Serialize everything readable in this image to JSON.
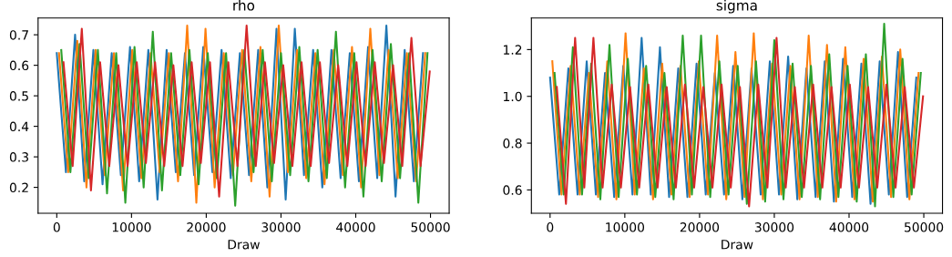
{
  "chart_data": [
    {
      "type": "line",
      "title": "rho",
      "xlabel": "Draw",
      "xlim": [
        -2500,
        52500
      ],
      "xticks": [
        0,
        10000,
        20000,
        30000,
        40000,
        50000
      ],
      "ylim": [
        0.115,
        0.755
      ],
      "yticks": [
        0.2,
        0.3,
        0.4,
        0.5,
        0.6,
        0.7
      ],
      "grid": false,
      "legend": false,
      "marker": "none",
      "line_style": "solid",
      "series": [
        {
          "color": "#1f77b4",
          "x": [
            0,
            1225,
            2450,
            3675,
            4900,
            6125,
            7350,
            8575,
            9800,
            11025,
            12250,
            13475,
            14700,
            15925,
            17150,
            18375,
            19600,
            20825,
            22050,
            23275,
            24500,
            25725,
            26950,
            28175,
            29400,
            30625,
            31850,
            33075,
            34300,
            35525,
            36750,
            37975,
            39200,
            40425,
            41650,
            42875,
            44100,
            45325,
            46550,
            47775,
            49000
          ],
          "values": [
            0.64,
            0.25,
            0.7,
            0.22,
            0.65,
            0.21,
            0.64,
            0.24,
            0.66,
            0.22,
            0.65,
            0.16,
            0.65,
            0.25,
            0.64,
            0.24,
            0.66,
            0.25,
            0.65,
            0.23,
            0.64,
            0.24,
            0.65,
            0.2,
            0.72,
            0.16,
            0.72,
            0.24,
            0.65,
            0.2,
            0.65,
            0.23,
            0.64,
            0.22,
            0.66,
            0.23,
            0.73,
            0.17,
            0.65,
            0.22,
            0.64
          ]
        },
        {
          "color": "#ff7f0e",
          "x": [
            300,
            1525,
            2750,
            3975,
            5200,
            6425,
            7650,
            8875,
            10100,
            11325,
            12550,
            13775,
            15000,
            16225,
            17450,
            18675,
            19900,
            21125,
            22350,
            23575,
            24800,
            26025,
            27250,
            28475,
            29700,
            30925,
            32150,
            33375,
            34600,
            35825,
            37050,
            38275,
            39500,
            40725,
            41950,
            43175,
            44400,
            45625,
            46850,
            48075,
            49300
          ],
          "values": [
            0.64,
            0.25,
            0.68,
            0.2,
            0.65,
            0.24,
            0.64,
            0.19,
            0.65,
            0.23,
            0.64,
            0.25,
            0.64,
            0.22,
            0.73,
            0.15,
            0.72,
            0.2,
            0.64,
            0.24,
            0.65,
            0.22,
            0.66,
            0.17,
            0.73,
            0.25,
            0.65,
            0.23,
            0.64,
            0.21,
            0.65,
            0.24,
            0.66,
            0.2,
            0.72,
            0.24,
            0.65,
            0.23,
            0.64,
            0.22,
            0.64
          ]
        },
        {
          "color": "#2ca02c",
          "x": [
            600,
            1825,
            3050,
            4275,
            5500,
            6725,
            7950,
            9175,
            10400,
            11625,
            12850,
            14075,
            15300,
            16525,
            17750,
            18975,
            20200,
            21425,
            22650,
            23875,
            25100,
            26325,
            27550,
            28775,
            30000,
            31225,
            32450,
            33675,
            34900,
            36125,
            37350,
            38575,
            39800,
            41025,
            42250,
            43475,
            44700,
            45925,
            47150,
            48375,
            49600
          ],
          "values": [
            0.65,
            0.25,
            0.67,
            0.23,
            0.65,
            0.18,
            0.64,
            0.15,
            0.66,
            0.2,
            0.71,
            0.19,
            0.64,
            0.24,
            0.65,
            0.21,
            0.64,
            0.23,
            0.64,
            0.14,
            0.65,
            0.25,
            0.65,
            0.22,
            0.64,
            0.24,
            0.66,
            0.22,
            0.65,
            0.23,
            0.71,
            0.2,
            0.64,
            0.17,
            0.65,
            0.22,
            0.67,
            0.23,
            0.64,
            0.15,
            0.64
          ]
        },
        {
          "color": "#d62728",
          "x": [
            900,
            2125,
            3350,
            4575,
            5800,
            7025,
            8250,
            9475,
            10700,
            11925,
            13150,
            14375,
            15600,
            16825,
            18050,
            19275,
            20500,
            21725,
            22950,
            24175,
            25400,
            26625,
            27850,
            29075,
            30300,
            31525,
            32750,
            33975,
            35200,
            36425,
            37650,
            38875,
            40100,
            41325,
            42550,
            43775,
            45000,
            46225,
            47450,
            48675,
            49900
          ],
          "values": [
            0.61,
            0.27,
            0.72,
            0.19,
            0.61,
            0.27,
            0.6,
            0.27,
            0.61,
            0.28,
            0.61,
            0.27,
            0.6,
            0.27,
            0.61,
            0.28,
            0.61,
            0.17,
            0.61,
            0.27,
            0.73,
            0.27,
            0.61,
            0.28,
            0.6,
            0.27,
            0.61,
            0.27,
            0.61,
            0.28,
            0.6,
            0.27,
            0.61,
            0.27,
            0.61,
            0.28,
            0.6,
            0.27,
            0.69,
            0.27,
            0.58
          ]
        }
      ]
    },
    {
      "type": "line",
      "title": "sigma",
      "xlabel": "Draw",
      "xlim": [
        -2500,
        52500
      ],
      "xticks": [
        0,
        10000,
        20000,
        30000,
        40000,
        50000
      ],
      "ylim": [
        0.5,
        1.335
      ],
      "yticks": [
        0.6,
        0.8,
        {
          "value": 1.0,
          "label": "1.0"
        },
        1.2
      ],
      "grid": false,
      "legend": false,
      "marker": "none",
      "line_style": "solid",
      "series": [
        {
          "color": "#1f77b4",
          "x": [
            0,
            1225,
            2450,
            3675,
            4900,
            6125,
            7350,
            8575,
            9800,
            11025,
            12250,
            13475,
            14700,
            15925,
            17150,
            18375,
            19600,
            20825,
            22050,
            23275,
            24500,
            25725,
            26950,
            28175,
            29400,
            30625,
            31850,
            33075,
            34300,
            35525,
            36750,
            37975,
            39200,
            40425,
            41650,
            42875,
            44100,
            45325,
            46550,
            47775,
            49000
          ],
          "values": [
            1.08,
            0.58,
            1.12,
            0.58,
            1.15,
            0.58,
            1.1,
            0.57,
            1.13,
            0.58,
            1.25,
            0.58,
            1.21,
            0.57,
            1.12,
            0.57,
            1.14,
            0.58,
            1.1,
            0.58,
            1.13,
            0.56,
            1.12,
            0.58,
            1.15,
            0.58,
            1.17,
            0.56,
            1.12,
            0.57,
            1.15,
            0.55,
            1.16,
            0.57,
            1.14,
            0.54,
            1.15,
            0.58,
            1.19,
            0.57,
            1.08
          ]
        },
        {
          "color": "#ff7f0e",
          "x": [
            300,
            1525,
            2750,
            3975,
            5200,
            6425,
            7650,
            8875,
            10100,
            11325,
            12550,
            13775,
            15000,
            16225,
            17450,
            18675,
            19900,
            21125,
            22350,
            23575,
            24800,
            26025,
            27250,
            28475,
            29700,
            30925,
            32150,
            33375,
            34600,
            35825,
            37050,
            38275,
            39500,
            40725,
            41950,
            43175,
            44400,
            45625,
            46850,
            48075,
            49300
          ],
          "values": [
            1.15,
            0.58,
            1.13,
            0.58,
            1.1,
            0.57,
            1.15,
            0.56,
            1.27,
            0.58,
            1.12,
            0.56,
            1.14,
            0.58,
            1.13,
            0.57,
            1.15,
            0.58,
            1.26,
            0.56,
            1.19,
            0.57,
            1.27,
            0.56,
            1.14,
            0.58,
            1.13,
            0.56,
            1.26,
            0.57,
            1.22,
            0.55,
            1.21,
            0.56,
            1.16,
            0.55,
            1.17,
            0.57,
            1.2,
            0.56,
            1.1
          ]
        },
        {
          "color": "#2ca02c",
          "x": [
            600,
            1825,
            3050,
            4275,
            5500,
            6725,
            7950,
            9175,
            10400,
            11625,
            12850,
            14075,
            15300,
            16525,
            17750,
            18975,
            20200,
            21425,
            22650,
            23875,
            25100,
            26325,
            27550,
            28775,
            30000,
            31225,
            32450,
            33675,
            34900,
            36125,
            37350,
            38575,
            39800,
            41025,
            42250,
            43475,
            44700,
            45925,
            47150,
            48375,
            49600
          ],
          "values": [
            1.1,
            0.58,
            1.21,
            0.58,
            1.14,
            0.56,
            1.22,
            0.57,
            1.16,
            0.58,
            1.13,
            0.57,
            1.1,
            0.56,
            1.26,
            0.58,
            1.26,
            0.57,
            1.15,
            0.58,
            1.13,
            0.54,
            1.15,
            0.55,
            1.24,
            0.56,
            1.14,
            0.57,
            1.13,
            0.56,
            1.18,
            0.57,
            1.13,
            0.55,
            1.18,
            0.53,
            1.31,
            0.57,
            1.16,
            0.58,
            1.1
          ]
        },
        {
          "color": "#d62728",
          "x": [
            900,
            2125,
            3350,
            4575,
            5800,
            7025,
            8250,
            9475,
            10700,
            11925,
            13150,
            14375,
            15600,
            16825,
            18050,
            19275,
            20500,
            21725,
            22950,
            24175,
            25400,
            26625,
            27850,
            29075,
            30300,
            31525,
            32750,
            33975,
            35200,
            36425,
            37650,
            38875,
            40100,
            41325,
            42550,
            43775,
            45000,
            46225,
            47450,
            48675,
            49900
          ],
          "values": [
            1.04,
            0.54,
            1.25,
            0.61,
            1.25,
            0.61,
            1.05,
            0.61,
            1.04,
            0.61,
            1.05,
            0.61,
            1.04,
            0.61,
            1.05,
            0.61,
            1.04,
            0.61,
            1.05,
            0.61,
            1.04,
            0.53,
            1.05,
            0.61,
            1.25,
            0.61,
            1.04,
            0.61,
            1.05,
            0.61,
            1.04,
            0.61,
            1.05,
            0.61,
            1.04,
            0.61,
            1.05,
            0.61,
            1.04,
            0.61,
            1.0
          ]
        }
      ]
    }
  ]
}
